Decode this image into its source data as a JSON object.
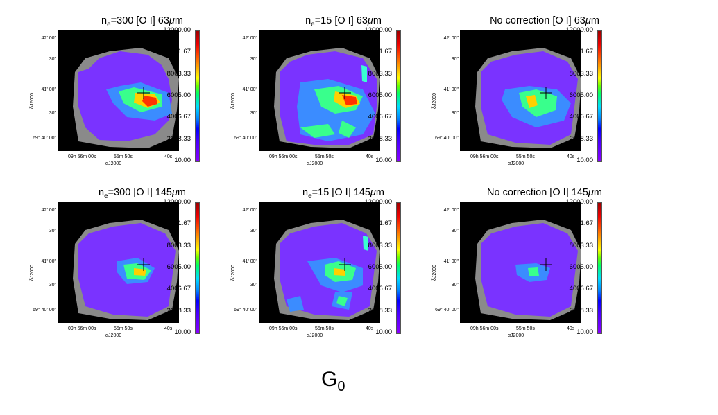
{
  "figure_label_main": "G",
  "figure_label_sub": "0",
  "chart_data": [
    {
      "type": "heatmap",
      "title_parts": [
        "n",
        "e",
        "=300 [O I] 63",
        "μ",
        "m"
      ],
      "colorbar_ticks": [
        "12000.00",
        "10001.67",
        "8003.33",
        "6005.00",
        "4006.67",
        "2008.33",
        "10.00"
      ],
      "colorbar_range": [
        10.0,
        12000.0
      ],
      "y_ticks": [
        "42' 00\"",
        "30\"",
        "41' 00\"",
        "30\"",
        "69° 40' 00\""
      ],
      "ylabel": "δJ2000",
      "x_ticks": [
        "09h 56m 00s",
        "55m 50s",
        "40s"
      ],
      "xlabel": "αJ2000"
    },
    {
      "type": "heatmap",
      "title_parts": [
        "n",
        "e",
        "=15 [O I] 63",
        "μ",
        "m"
      ],
      "colorbar_ticks": [
        "12000.00",
        "10001.67",
        "8003.33",
        "6005.00",
        "4006.67",
        "2008.33",
        "10.00"
      ],
      "colorbar_range": [
        10.0,
        12000.0
      ],
      "y_ticks": [
        "42' 00\"",
        "30\"",
        "41' 00\"",
        "30\"",
        "69° 40' 00\""
      ],
      "ylabel": "δJ2000",
      "x_ticks": [
        "09h 56m 00s",
        "55m 50s",
        "40s"
      ],
      "xlabel": "αJ2000"
    },
    {
      "type": "heatmap",
      "title_parts": [
        "",
        "",
        "No correction [O I] 63",
        "μ",
        "m"
      ],
      "colorbar_ticks": [
        "12000.00",
        "10001.67",
        "8003.33",
        "6005.00",
        "4006.67",
        "2008.33",
        "10.00"
      ],
      "colorbar_range": [
        10.0,
        12000.0
      ],
      "y_ticks": [
        "42' 00\"",
        "30\"",
        "41' 00\"",
        "30\"",
        "69° 40' 00\""
      ],
      "ylabel": "δJ2000",
      "x_ticks": [
        "09h 56m 00s",
        "55m 50s",
        "40s"
      ],
      "xlabel": "αJ2000"
    },
    {
      "type": "heatmap",
      "title_parts": [
        "n",
        "e",
        "=300 [O I] 145",
        "μ",
        "m"
      ],
      "colorbar_ticks": [
        "12000.00",
        "10001.67",
        "8003.33",
        "6005.00",
        "4006.67",
        "2008.33",
        "10.00"
      ],
      "colorbar_range": [
        10.0,
        12000.0
      ],
      "y_ticks": [
        "42' 00\"",
        "30\"",
        "41' 00\"",
        "30\"",
        "69° 40' 00\""
      ],
      "ylabel": "δJ2000",
      "x_ticks": [
        "09h 56m 00s",
        "55m 50s",
        "40s"
      ],
      "xlabel": "αJ2000"
    },
    {
      "type": "heatmap",
      "title_parts": [
        "n",
        "e",
        "=15 [O I] 145",
        "μ",
        "m"
      ],
      "colorbar_ticks": [
        "12000.00",
        "10001.67",
        "8003.33",
        "6005.00",
        "4006.67",
        "2008.33",
        "10.00"
      ],
      "colorbar_range": [
        10.0,
        12000.0
      ],
      "y_ticks": [
        "42' 00\"",
        "30\"",
        "41' 00\"",
        "30\"",
        "69° 40' 00\""
      ],
      "ylabel": "δJ2000",
      "x_ticks": [
        "09h 56m 00s",
        "55m 50s",
        "40s"
      ],
      "xlabel": "αJ2000"
    },
    {
      "type": "heatmap",
      "title_parts": [
        "",
        "",
        "No correction [O I] 145",
        "μ",
        "m"
      ],
      "colorbar_ticks": [
        "12000.00",
        "10001.67",
        "8003.33",
        "6005.00",
        "4006.67",
        "2008.33",
        "10.00"
      ],
      "colorbar_range": [
        10.0,
        12000.0
      ],
      "y_ticks": [
        "42' 00\"",
        "30\"",
        "41' 00\"",
        "30\"",
        "69° 40' 00\""
      ],
      "ylabel": "δJ2000",
      "x_ticks": [
        "09h 56m 00s",
        "55m 50s",
        "40s"
      ],
      "xlabel": "αJ2000"
    }
  ]
}
